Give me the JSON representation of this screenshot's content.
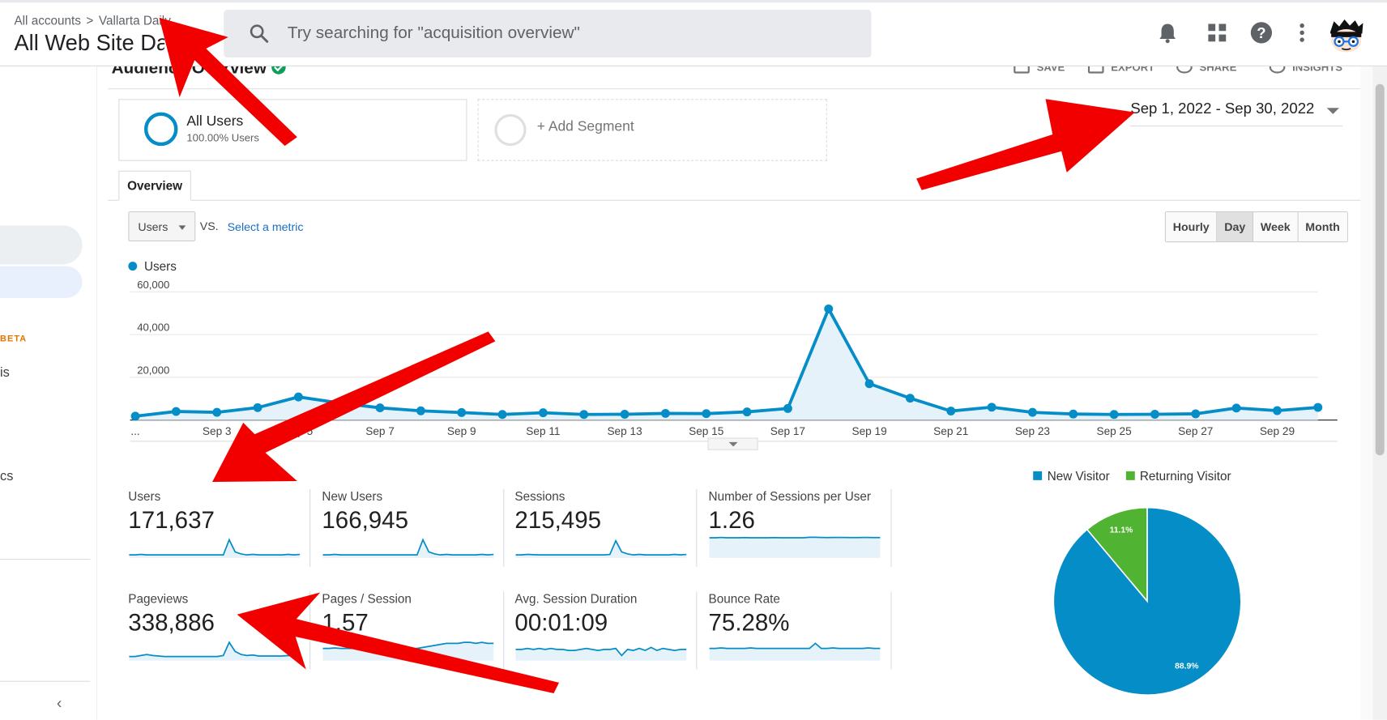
{
  "topbar": {
    "breadcrumb_root": "All accounts",
    "breadcrumb_sep": ">",
    "breadcrumb_property": "Vallarta Daily",
    "view_name": "All Web Site Data",
    "search_placeholder": "Try searching for \"acquisition overview\"",
    "icons": [
      "search-icon",
      "bell-icon",
      "apps-grid-icon",
      "help-icon",
      "more-vert-icon",
      "avatar"
    ]
  },
  "sidebar": {
    "beta": "BETA",
    "item_is": "is",
    "item_cs": "cs",
    "collapse": "‹"
  },
  "report": {
    "title": "Audience Overview",
    "actions": [
      "SAVE",
      "EXPORT",
      "SHARE",
      "INSIGHTS"
    ],
    "segment_name": "All Users",
    "segment_sub": "100.00% Users",
    "add_segment": "+ Add Segment",
    "date_range": "Sep 1, 2022 - Sep 30, 2022",
    "tab": "Overview",
    "metric": "Users",
    "vs": "VS.",
    "select_metric": "Select a metric",
    "granularity": [
      "Hourly",
      "Day",
      "Week",
      "Month"
    ],
    "granularity_selected": "Day",
    "legend": "Users"
  },
  "chart_data": [
    {
      "type": "area",
      "series": [
        {
          "name": "Users",
          "color": "#058dc7",
          "values": [
            1800,
            4000,
            3600,
            5800,
            10800,
            8000,
            5700,
            4300,
            3500,
            2600,
            3400,
            2600,
            2700,
            3100,
            3000,
            3800,
            5400,
            52000,
            17000,
            10200,
            4200,
            6000,
            3600,
            2800,
            2600,
            2700,
            2900,
            5600,
            4400,
            5900
          ]
        }
      ],
      "x_tick_labels": [
        "...",
        "Sep 3",
        "Sep 5",
        "Sep 7",
        "Sep 9",
        "Sep 11",
        "Sep 13",
        "Sep 15",
        "Sep 17",
        "Sep 19",
        "Sep 21",
        "Sep 23",
        "Sep 25",
        "Sep 27",
        "Sep 29"
      ],
      "y_tick_labels": [
        "60,000",
        "40,000",
        "20,000"
      ],
      "ylim": [
        0,
        60000
      ],
      "grid": true
    },
    {
      "type": "pie",
      "labels": [
        "New Visitor",
        "Returning Visitor"
      ],
      "values": [
        88.9,
        11.1
      ],
      "slice_labels": [
        "88.9%",
        "11.1%"
      ],
      "colors": [
        "#058dc7",
        "#50b432"
      ],
      "legend": "top"
    }
  ],
  "metrics": [
    {
      "label": "Users",
      "value": "171,637"
    },
    {
      "label": "New Users",
      "value": "166,945"
    },
    {
      "label": "Sessions",
      "value": "215,495"
    },
    {
      "label": "Number of Sessions per User",
      "value": "1.26"
    },
    {
      "label": "Pageviews",
      "value": "338,886"
    },
    {
      "label": "Pages / Session",
      "value": "1.57"
    },
    {
      "label": "Avg. Session Duration",
      "value": "00:01:09"
    },
    {
      "label": "Bounce Rate",
      "value": "75.28%"
    }
  ]
}
